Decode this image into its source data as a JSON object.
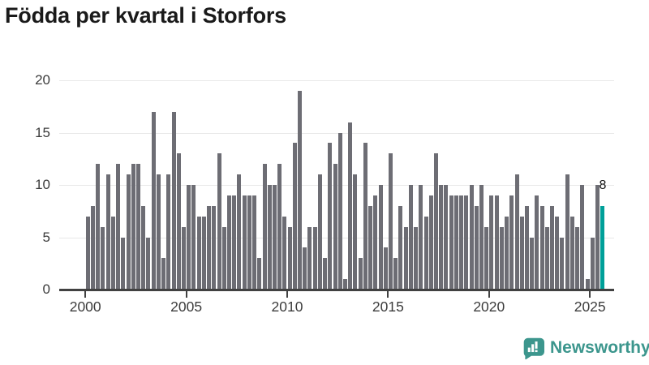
{
  "title": "Födda per kvartal i Storfors",
  "chart_data": {
    "type": "bar",
    "title": "Födda per kvartal i Storfors",
    "frequency": "quarterly",
    "ylim": [
      0,
      20
    ],
    "yticks": [
      0,
      5,
      10,
      15,
      20
    ],
    "xticks": [
      2000,
      2005,
      2010,
      2015,
      2020,
      2025
    ],
    "grid": "horizontal",
    "bar_color": "#6d6d74",
    "highlight_color": "#00a099",
    "years": [
      {
        "year": 2000,
        "values": [
          7,
          8,
          12,
          6
        ]
      },
      {
        "year": 2001,
        "values": [
          11,
          7,
          12,
          5
        ]
      },
      {
        "year": 2002,
        "values": [
          11,
          12,
          12,
          8
        ]
      },
      {
        "year": 2003,
        "values": [
          5,
          17,
          11,
          3
        ]
      },
      {
        "year": 2004,
        "values": [
          11,
          17,
          13,
          6
        ]
      },
      {
        "year": 2005,
        "values": [
          10,
          10,
          7,
          7
        ]
      },
      {
        "year": 2006,
        "values": [
          8,
          8,
          13,
          6
        ]
      },
      {
        "year": 2007,
        "values": [
          9,
          9,
          11,
          9
        ]
      },
      {
        "year": 2008,
        "values": [
          9,
          9,
          3,
          12
        ]
      },
      {
        "year": 2009,
        "values": [
          10,
          10,
          12,
          7
        ]
      },
      {
        "year": 2010,
        "values": [
          6,
          14,
          19,
          4
        ]
      },
      {
        "year": 2011,
        "values": [
          6,
          6,
          11,
          3
        ]
      },
      {
        "year": 2012,
        "values": [
          14,
          12,
          15,
          1
        ]
      },
      {
        "year": 2013,
        "values": [
          16,
          11,
          3,
          14
        ]
      },
      {
        "year": 2014,
        "values": [
          8,
          9,
          10,
          4
        ]
      },
      {
        "year": 2015,
        "values": [
          13,
          3,
          8,
          6
        ]
      },
      {
        "year": 2016,
        "values": [
          10,
          6,
          10,
          7
        ]
      },
      {
        "year": 2017,
        "values": [
          9,
          13,
          10,
          10
        ]
      },
      {
        "year": 2018,
        "values": [
          9,
          9,
          9,
          9
        ]
      },
      {
        "year": 2019,
        "values": [
          10,
          8,
          10,
          6
        ]
      },
      {
        "year": 2020,
        "values": [
          9,
          9,
          6,
          7
        ]
      },
      {
        "year": 2021,
        "values": [
          9,
          11,
          7,
          8
        ]
      },
      {
        "year": 2022,
        "values": [
          5,
          9,
          8,
          6
        ]
      },
      {
        "year": 2023,
        "values": [
          8,
          7,
          5,
          11
        ]
      },
      {
        "year": 2024,
        "values": [
          7,
          6,
          10,
          1
        ]
      },
      {
        "year": 2025,
        "values": [
          5,
          10,
          8
        ]
      }
    ],
    "highlight": {
      "period": "2025 Q3",
      "value": 8,
      "label": "8"
    }
  },
  "branding": {
    "name": "Newsworthy",
    "color": "#3c968d"
  }
}
